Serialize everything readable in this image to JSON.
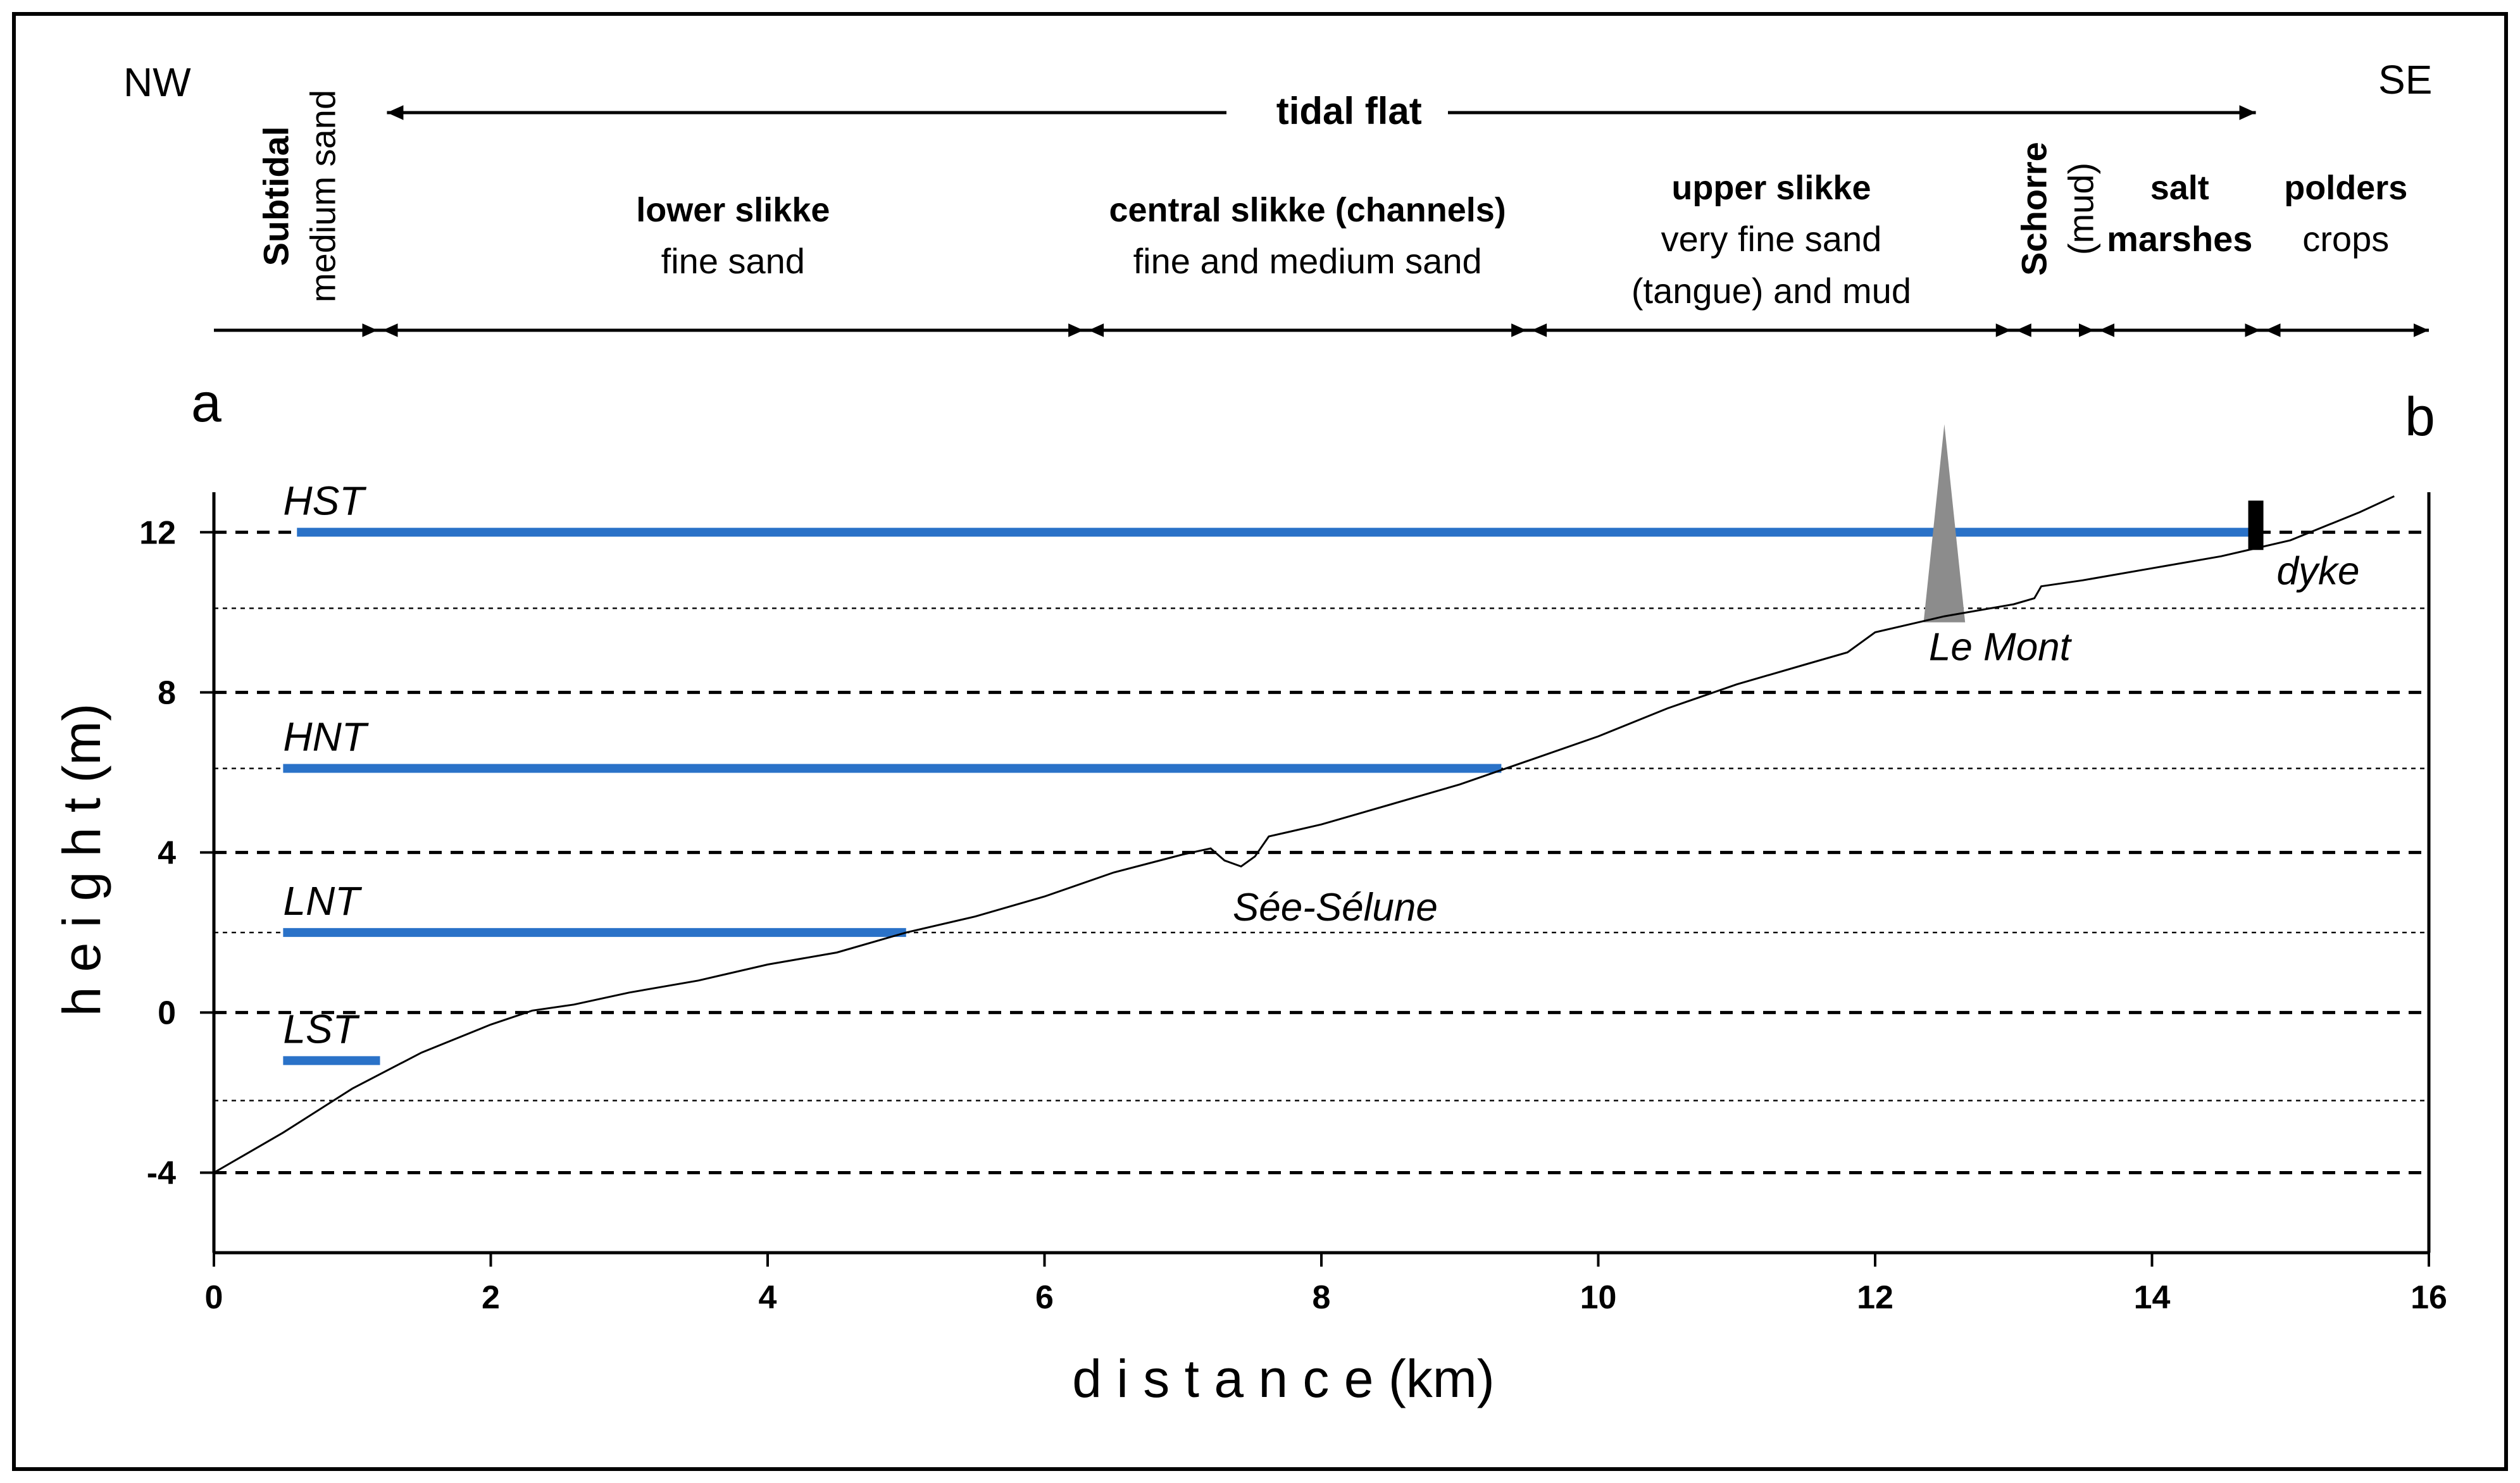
{
  "chart_data": {
    "type": "line",
    "title": "",
    "orientation_left": "NW",
    "orientation_right": "SE",
    "tidal_flat_label": "tidal flat",
    "zones": [
      {
        "id": "subtidal",
        "title": "Subtidal",
        "sub": "medium sand",
        "x0": 0,
        "x1": 1.2,
        "rotated": true
      },
      {
        "id": "lower-slikke",
        "title": "lower slikke",
        "sub": "fine sand",
        "x0": 1.2,
        "x1": 6.3,
        "rotated": false
      },
      {
        "id": "central-slikke",
        "title": "central slikke (channels)",
        "sub": "fine and medium sand",
        "x0": 6.3,
        "x1": 9.5,
        "rotated": false
      },
      {
        "id": "upper-slikke",
        "title": "upper slikke",
        "sub": "very fine sand",
        "sub2": "(tangue) and mud",
        "x0": 9.5,
        "x1": 13.0,
        "rotated": false
      },
      {
        "id": "schorre",
        "title": "Schorre",
        "sub": "(mud)",
        "x0": 13.0,
        "x1": 13.6,
        "rotated": true
      },
      {
        "id": "salt-marshes",
        "title": "salt",
        "sub": "marshes",
        "x0": 13.6,
        "x1": 14.8,
        "rotated": false,
        "both_bold": true
      },
      {
        "id": "polders",
        "title": "polders",
        "sub": "crops",
        "x0": 14.8,
        "x1": 16.0,
        "rotated": false
      }
    ],
    "profile_start": "a",
    "profile_end": "b",
    "xlabel": "d i s t a n c e (km)",
    "ylabel": "h e i g h t (m)",
    "xlim": [
      0,
      16
    ],
    "ylim": [
      -6,
      13
    ],
    "xticks": [
      0,
      2,
      4,
      6,
      8,
      10,
      12,
      14,
      16
    ],
    "yticks": [
      -4,
      0,
      4,
      8,
      12
    ],
    "major_gridlines": [
      -4,
      0,
      4,
      8,
      12
    ],
    "minor_gridlines": [
      -2.2,
      2.0,
      6.1,
      10.1
    ],
    "tide_levels": [
      {
        "name": "HST",
        "y": 12.0,
        "x0": 0.6,
        "x1": 14.8
      },
      {
        "name": "HNT",
        "y": 6.1,
        "x0": 0.5,
        "x1": 9.3
      },
      {
        "name": "LNT",
        "y": 2.0,
        "x0": 0.5,
        "x1": 5.0
      },
      {
        "name": "LST",
        "y": -1.2,
        "x0": 0.5,
        "x1": 1.2
      }
    ],
    "profile": [
      [
        0,
        -4.0
      ],
      [
        0.5,
        -3.0
      ],
      [
        1.0,
        -1.9
      ],
      [
        1.5,
        -1.0
      ],
      [
        2.0,
        -0.3
      ],
      [
        2.3,
        0.05
      ],
      [
        2.6,
        0.2
      ],
      [
        3.0,
        0.5
      ],
      [
        3.5,
        0.8
      ],
      [
        4.0,
        1.2
      ],
      [
        4.5,
        1.5
      ],
      [
        5.0,
        2.0
      ],
      [
        5.5,
        2.4
      ],
      [
        6.0,
        2.9
      ],
      [
        6.5,
        3.5
      ],
      [
        7.0,
        3.95
      ],
      [
        7.2,
        4.1
      ],
      [
        7.3,
        3.8
      ],
      [
        7.42,
        3.65
      ],
      [
        7.52,
        3.9
      ],
      [
        7.62,
        4.4
      ],
      [
        8.0,
        4.7
      ],
      [
        8.5,
        5.2
      ],
      [
        9.0,
        5.7
      ],
      [
        9.5,
        6.3
      ],
      [
        10.0,
        6.9
      ],
      [
        10.5,
        7.6
      ],
      [
        11.0,
        8.2
      ],
      [
        11.5,
        8.7
      ],
      [
        11.8,
        9.0
      ],
      [
        12.0,
        9.5
      ],
      [
        12.5,
        9.9
      ],
      [
        13.0,
        10.2
      ],
      [
        13.15,
        10.35
      ],
      [
        13.2,
        10.65
      ],
      [
        13.5,
        10.8
      ],
      [
        14.0,
        11.1
      ],
      [
        14.5,
        11.4
      ],
      [
        15.0,
        11.8
      ],
      [
        15.5,
        12.5
      ],
      [
        15.75,
        12.9
      ]
    ],
    "annotations": [
      {
        "text": "Sée-Sélune",
        "x": 8.1,
        "y": 2.3
      },
      {
        "text": "Le Mont",
        "x": 12.9,
        "y": 8.8
      },
      {
        "text": "dyke",
        "x": 15.2,
        "y": 10.7
      }
    ],
    "mont_peak": {
      "x": 12.5,
      "y": 14.7,
      "base_x0": 12.35,
      "base_x1": 12.65,
      "base_y": 9.75
    },
    "dyke_x": 14.75
  },
  "colors": {
    "tide_line": "#2a72c8",
    "mont": "#8c8c8c",
    "ink": "#000000"
  }
}
